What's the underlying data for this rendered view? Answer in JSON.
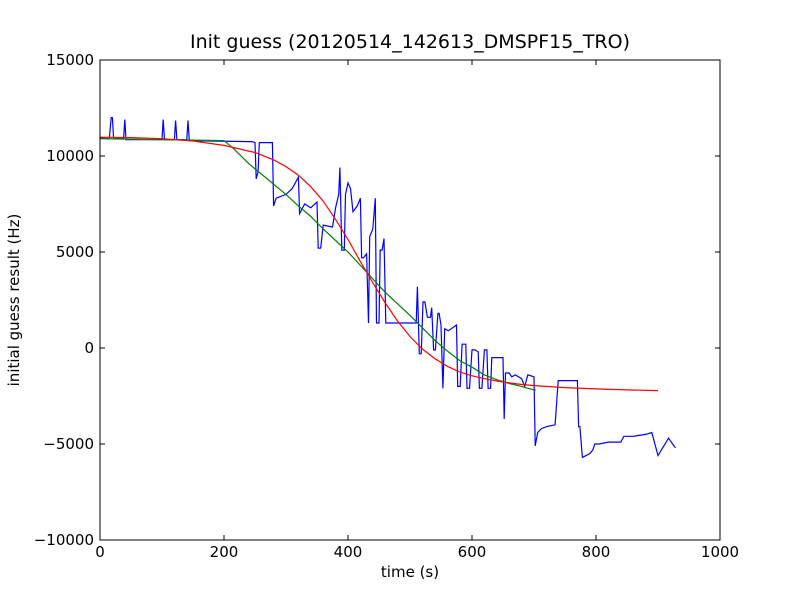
{
  "chart_data": {
    "type": "line",
    "title": "Init guess (20120514_142613_DMSPF15_TRO)",
    "xlabel": "time (s)",
    "ylabel": "initial guess result (Hz)",
    "xlim": [
      0,
      1000
    ],
    "ylim": [
      -10000,
      15000
    ],
    "x_ticks": [
      0,
      200,
      400,
      600,
      800,
      1000
    ],
    "y_ticks": [
      -10000,
      -5000,
      0,
      5000,
      10000,
      15000
    ],
    "x_tick_labels": [
      "0",
      "200",
      "400",
      "600",
      "800",
      "1000"
    ],
    "y_tick_labels": [
      "−10000",
      "−5000",
      "0",
      "5000",
      "10000",
      "15000"
    ],
    "grid": false,
    "legend": "none",
    "series": [
      {
        "color": "#0000ff",
        "style": "raw",
        "points": [
          [
            0,
            10950
          ],
          [
            15,
            10900
          ],
          [
            18,
            12000
          ],
          [
            20,
            12000
          ],
          [
            22,
            10900
          ],
          [
            38,
            10900
          ],
          [
            40,
            11900
          ],
          [
            42,
            10850
          ],
          [
            100,
            10850
          ],
          [
            102,
            11900
          ],
          [
            104,
            10850
          ],
          [
            120,
            10850
          ],
          [
            122,
            11850
          ],
          [
            124,
            10850
          ],
          [
            140,
            10850
          ],
          [
            142,
            11850
          ],
          [
            144,
            10800
          ],
          [
            240,
            10750
          ],
          [
            245,
            10750
          ],
          [
            250,
            10700
          ],
          [
            252,
            8800
          ],
          [
            255,
            9200
          ],
          [
            257,
            10700
          ],
          [
            278,
            10700
          ],
          [
            280,
            7400
          ],
          [
            284,
            7800
          ],
          [
            300,
            8000
          ],
          [
            310,
            8300
          ],
          [
            320,
            8900
          ],
          [
            322,
            7000
          ],
          [
            330,
            7500
          ],
          [
            340,
            7300
          ],
          [
            350,
            7600
          ],
          [
            352,
            5200
          ],
          [
            356,
            5200
          ],
          [
            360,
            6400
          ],
          [
            375,
            6300
          ],
          [
            380,
            7300
          ],
          [
            385,
            8000
          ],
          [
            387,
            9400
          ],
          [
            390,
            5100
          ],
          [
            394,
            5100
          ],
          [
            396,
            8000
          ],
          [
            400,
            8600
          ],
          [
            404,
            8300
          ],
          [
            408,
            7100
          ],
          [
            415,
            7400
          ],
          [
            420,
            7800
          ],
          [
            422,
            4700
          ],
          [
            425,
            4700
          ],
          [
            430,
            4900
          ],
          [
            433,
            1300
          ],
          [
            435,
            5800
          ],
          [
            440,
            6200
          ],
          [
            444,
            7800
          ],
          [
            446,
            1300
          ],
          [
            450,
            1300
          ],
          [
            452,
            5100
          ],
          [
            455,
            5100
          ],
          [
            458,
            5700
          ],
          [
            461,
            1300
          ],
          [
            470,
            1300
          ],
          [
            490,
            1300
          ],
          [
            510,
            1300
          ],
          [
            512,
            3200
          ],
          [
            515,
            -300
          ],
          [
            518,
            -300
          ],
          [
            521,
            2400
          ],
          [
            524,
            2400
          ],
          [
            528,
            1600
          ],
          [
            533,
            1600
          ],
          [
            535,
            2100
          ],
          [
            538,
            -100
          ],
          [
            541,
            -100
          ],
          [
            545,
            1800
          ],
          [
            547,
            1800
          ],
          [
            550,
            1200
          ],
          [
            553,
            -2100
          ],
          [
            556,
            1000
          ],
          [
            562,
            900
          ],
          [
            575,
            1200
          ],
          [
            577,
            -2000
          ],
          [
            581,
            -2000
          ],
          [
            584,
            200
          ],
          [
            590,
            200
          ],
          [
            592,
            -2100
          ],
          [
            596,
            -2100
          ],
          [
            600,
            -100
          ],
          [
            605,
            -100
          ],
          [
            610,
            -200
          ],
          [
            612,
            -2100
          ],
          [
            616,
            -2100
          ],
          [
            620,
            -100
          ],
          [
            624,
            -100
          ],
          [
            626,
            -2100
          ],
          [
            630,
            -2100
          ],
          [
            632,
            -500
          ],
          [
            640,
            -500
          ],
          [
            650,
            -500
          ],
          [
            652,
            -3700
          ],
          [
            654,
            -1300
          ],
          [
            660,
            -1300
          ],
          [
            664,
            -1500
          ],
          [
            670,
            -1400
          ],
          [
            680,
            -1600
          ],
          [
            685,
            -2000
          ],
          [
            690,
            -1400
          ],
          [
            700,
            -1500
          ],
          [
            702,
            -5100
          ],
          [
            706,
            -4400
          ],
          [
            712,
            -4200
          ],
          [
            720,
            -4100
          ],
          [
            734,
            -4000
          ],
          [
            739,
            -1700
          ],
          [
            760,
            -1700
          ],
          [
            770,
            -1700
          ],
          [
            772,
            -4100
          ],
          [
            774,
            -4100
          ],
          [
            778,
            -5700
          ],
          [
            790,
            -5500
          ],
          [
            795,
            -5300
          ],
          [
            798,
            -5000
          ],
          [
            805,
            -5000
          ],
          [
            820,
            -4900
          ],
          [
            840,
            -4900
          ],
          [
            845,
            -4600
          ],
          [
            860,
            -4600
          ],
          [
            880,
            -4500
          ],
          [
            890,
            -4400
          ],
          [
            900,
            -5600
          ],
          [
            917,
            -4700
          ],
          [
            928,
            -5200
          ]
        ]
      },
      {
        "color": "#008000",
        "style": "linear fit",
        "points": [
          [
            0,
            10900
          ],
          [
            200,
            10800
          ],
          [
            215,
            10400
          ],
          [
            240,
            9600
          ],
          [
            270,
            8800
          ],
          [
            300,
            8000
          ],
          [
            320,
            7400
          ],
          [
            340,
            6850
          ],
          [
            360,
            6200
          ],
          [
            380,
            5600
          ],
          [
            400,
            5000
          ],
          [
            420,
            4300
          ],
          [
            440,
            3600
          ],
          [
            460,
            2900
          ],
          [
            480,
            2300
          ],
          [
            500,
            1700
          ],
          [
            520,
            1050
          ],
          [
            540,
            400
          ],
          [
            560,
            -150
          ],
          [
            580,
            -650
          ],
          [
            600,
            -1000
          ],
          [
            620,
            -1400
          ],
          [
            640,
            -1650
          ],
          [
            660,
            -1850
          ],
          [
            680,
            -2000
          ],
          [
            690,
            -2100
          ],
          [
            703,
            -2200
          ]
        ]
      },
      {
        "color": "#ff0000",
        "style": "sigmoid fit",
        "points": [
          [
            0,
            10980
          ],
          [
            50,
            10960
          ],
          [
            100,
            10900
          ],
          [
            150,
            10780
          ],
          [
            200,
            10550
          ],
          [
            250,
            10180
          ],
          [
            280,
            9800
          ],
          [
            300,
            9450
          ],
          [
            320,
            9000
          ],
          [
            340,
            8400
          ],
          [
            360,
            7650
          ],
          [
            380,
            6700
          ],
          [
            400,
            5650
          ],
          [
            420,
            4500
          ],
          [
            440,
            3400
          ],
          [
            460,
            2350
          ],
          [
            480,
            1400
          ],
          [
            500,
            600
          ],
          [
            520,
            -50
          ],
          [
            540,
            -550
          ],
          [
            560,
            -950
          ],
          [
            580,
            -1250
          ],
          [
            600,
            -1450
          ],
          [
            620,
            -1600
          ],
          [
            640,
            -1720
          ],
          [
            660,
            -1820
          ],
          [
            680,
            -1900
          ],
          [
            700,
            -1960
          ],
          [
            750,
            -2060
          ],
          [
            800,
            -2130
          ],
          [
            850,
            -2180
          ],
          [
            900,
            -2220
          ]
        ]
      }
    ]
  }
}
